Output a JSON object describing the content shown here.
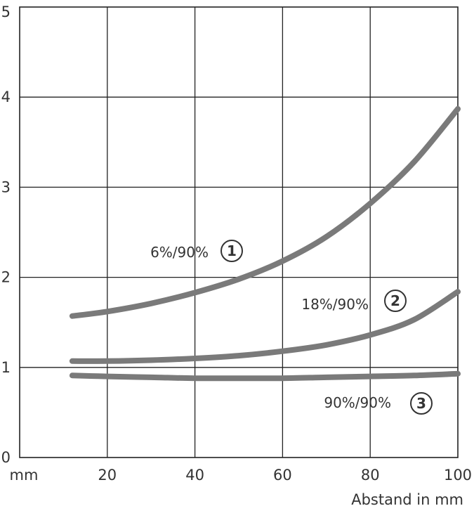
{
  "chart_data": {
    "type": "line",
    "title": "",
    "xlabel": "Abstand in mm",
    "x_unit_label": "mm",
    "ylabel": "",
    "xlim": [
      0,
      100
    ],
    "ylim": [
      0,
      5
    ],
    "xticks": [
      20,
      40,
      60,
      80,
      100
    ],
    "yticks": [
      0,
      1,
      2,
      3,
      4,
      5
    ],
    "grid": true,
    "series_color": "#7a7a7a",
    "series": [
      {
        "name": "6%/90%",
        "marker": "1",
        "x": [
          12,
          20,
          30,
          40,
          50,
          60,
          70,
          80,
          90,
          100
        ],
        "y": [
          1.57,
          1.62,
          1.71,
          1.83,
          1.98,
          2.18,
          2.45,
          2.82,
          3.28,
          3.87
        ]
      },
      {
        "name": "18%/90%",
        "marker": "2",
        "x": [
          12,
          20,
          30,
          40,
          50,
          60,
          70,
          80,
          90,
          100
        ],
        "y": [
          1.07,
          1.07,
          1.08,
          1.1,
          1.13,
          1.18,
          1.25,
          1.36,
          1.53,
          1.84
        ]
      },
      {
        "name": "90%/90%",
        "marker": "3",
        "x": [
          12,
          20,
          30,
          40,
          50,
          60,
          70,
          80,
          90,
          100
        ],
        "y": [
          0.91,
          0.9,
          0.89,
          0.88,
          0.88,
          0.88,
          0.89,
          0.9,
          0.91,
          0.93
        ]
      }
    ]
  }
}
